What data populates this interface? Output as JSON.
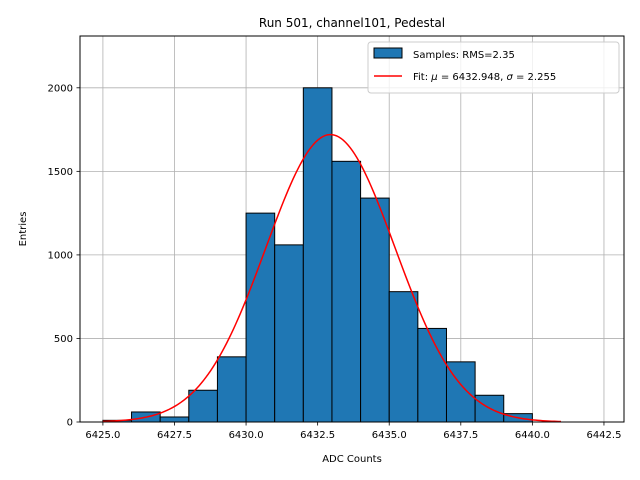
{
  "chart_data": {
    "type": "bar",
    "title": "Run 501, channel101, Pedestal",
    "xlabel": "ADC Counts",
    "ylabel": "Entries",
    "xlim": [
      6424.2,
      6443.2
    ],
    "ylim": [
      0,
      2310
    ],
    "xticks": [
      6425.0,
      6427.5,
      6430.0,
      6432.5,
      6435.0,
      6437.5,
      6440.0,
      6442.5
    ],
    "xtick_labels": [
      "6425.0",
      "6427.5",
      "6430.0",
      "6432.5",
      "6435.0",
      "6437.5",
      "6440.0",
      "6442.5"
    ],
    "yticks": [
      0,
      500,
      1000,
      1500,
      2000
    ],
    "ytick_labels": [
      "0",
      "500",
      "1000",
      "1500",
      "2000"
    ],
    "grid": true,
    "legend_position": "upper right",
    "histogram": {
      "name": "Samples: RMS=2.35",
      "color": "#1f77b4",
      "edge_color": "#000000",
      "bin_edges": [
        6425,
        6426,
        6427,
        6428,
        6429,
        6430,
        6431,
        6432,
        6433,
        6434,
        6435,
        6436,
        6437,
        6438,
        6439,
        6440,
        6441
      ],
      "counts": [
        10,
        60,
        30,
        190,
        390,
        1250,
        1060,
        2000,
        1560,
        1340,
        780,
        560,
        360,
        160,
        50,
        0
      ]
    },
    "fit": {
      "name": "Fit: μ = 6432.948, σ = 2.255",
      "label_prefix": "Fit: ",
      "mu_symbol": "μ",
      "mu_text": " = 6432.948, ",
      "sigma_symbol": "σ",
      "sigma_text": " = 2.255",
      "color": "#ff0000",
      "mu": 6432.948,
      "sigma": 2.255,
      "amplitude": 1720,
      "x_range": [
        6425,
        6441
      ]
    }
  }
}
